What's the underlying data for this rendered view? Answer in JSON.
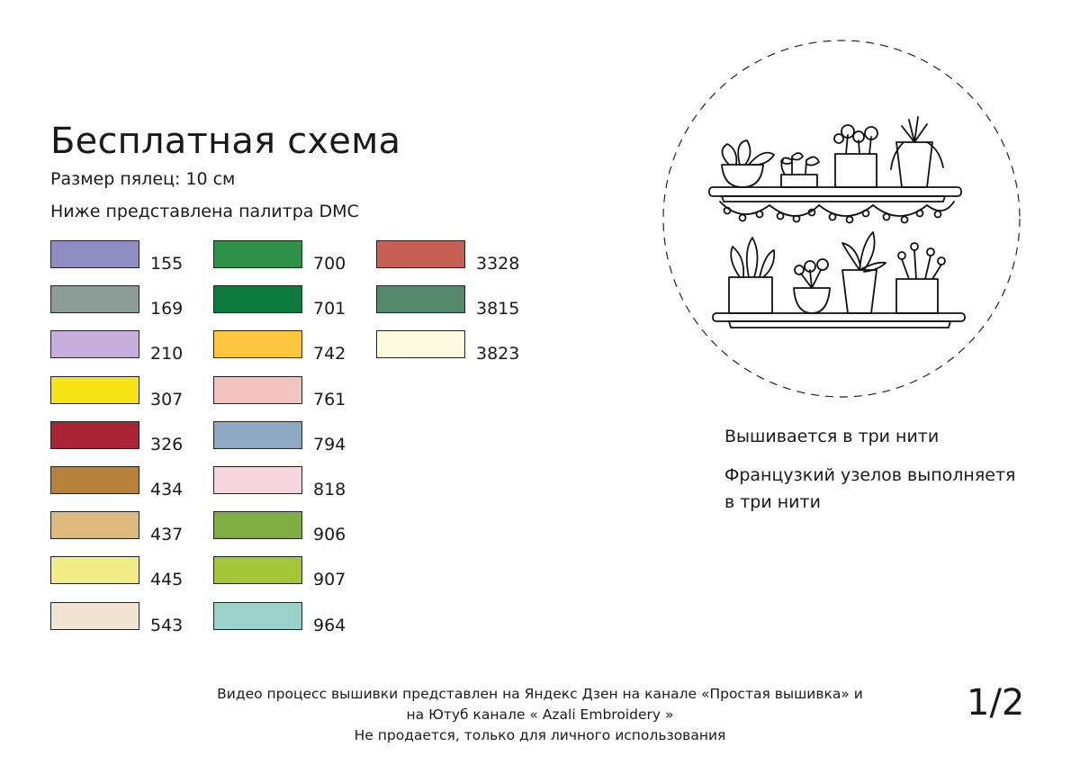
{
  "title": "Бесплатная схема",
  "hoop_size": "Размер пялец: 10 см",
  "palette_intro": "Ниже представлена палитра DMC",
  "palette": {
    "columns": [
      [
        {
          "code": "155",
          "color": "#8F8CC4"
        },
        {
          "code": "169",
          "color": "#8C9C96"
        },
        {
          "code": "210",
          "color": "#C6AEDF"
        },
        {
          "code": "307",
          "color": "#F6E417"
        },
        {
          "code": "326",
          "color": "#A82334"
        },
        {
          "code": "434",
          "color": "#B7813A"
        },
        {
          "code": "437",
          "color": "#DDB97D"
        },
        {
          "code": "445",
          "color": "#F0EC86"
        },
        {
          "code": "543",
          "color": "#F2E4D3"
        }
      ],
      [
        {
          "code": "700",
          "color": "#2F9147"
        },
        {
          "code": "701",
          "color": "#0B7A3C"
        },
        {
          "code": "742",
          "color": "#FEC63E"
        },
        {
          "code": "761",
          "color": "#F3C3BE"
        },
        {
          "code": "794",
          "color": "#8DA8C3"
        },
        {
          "code": "818",
          "color": "#F7D5DD"
        },
        {
          "code": "906",
          "color": "#7FAC43"
        },
        {
          "code": "907",
          "color": "#A6C63A"
        },
        {
          "code": "964",
          "color": "#9BD2CB"
        }
      ],
      [
        {
          "code": "3328",
          "color": "#C65F55"
        },
        {
          "code": "3815",
          "color": "#538A6B"
        },
        {
          "code": "3823",
          "color": "#FFFBE1"
        }
      ]
    ]
  },
  "notes": {
    "threads": "Вышивается в три нити",
    "french_knots_line1": "Французкий узелов выполняетя",
    "french_knots_line2": "в три нити"
  },
  "footer": {
    "line1": "Видео процесс вышивки представлен на Яндекс Дзен на канале «Простая вышивка»  и",
    "line2": "на Ютуб канале « Azali Embroidery »",
    "line3": "Не продается, только для личного использования"
  },
  "page_number": "1/2",
  "illustration": {
    "subject": "plants-on-shelves-icon"
  }
}
